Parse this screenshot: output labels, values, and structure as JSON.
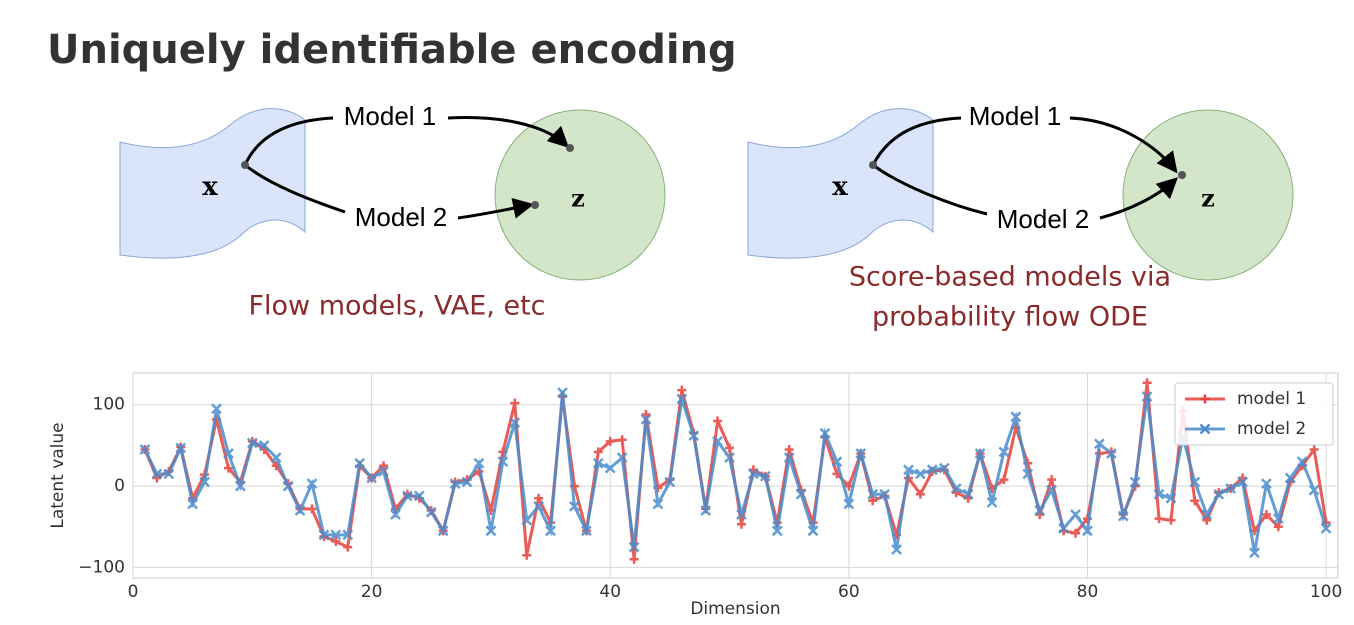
{
  "title": "Uniquely identifiable encoding",
  "diagrams": [
    {
      "x": "x",
      "z": "z",
      "edges": [
        "Model 1",
        "Model 2"
      ],
      "caption": [
        "Flow models, VAE, etc"
      ]
    },
    {
      "x": "x",
      "z": "z",
      "edges": [
        "Model 1",
        "Model 2"
      ],
      "caption": [
        "Score-based models via",
        "probability flow ODE"
      ]
    }
  ],
  "chart_data": {
    "type": "line",
    "xlabel": "Dimension",
    "ylabel": "Latent value",
    "xlim": [
      0,
      101
    ],
    "ylim": [
      -113,
      139
    ],
    "xticks": [
      0,
      20,
      40,
      60,
      80,
      100
    ],
    "yticks": [
      {
        "value": -100,
        "label": "−100"
      },
      0,
      100
    ],
    "grid": true,
    "legend": "upper right",
    "x": [
      1,
      2,
      3,
      4,
      5,
      6,
      7,
      8,
      9,
      10,
      11,
      12,
      13,
      14,
      15,
      16,
      17,
      18,
      19,
      20,
      21,
      22,
      23,
      24,
      25,
      26,
      27,
      28,
      29,
      30,
      31,
      32,
      33,
      34,
      35,
      36,
      37,
      38,
      39,
      40,
      41,
      42,
      43,
      44,
      45,
      46,
      47,
      48,
      49,
      50,
      51,
      52,
      53,
      54,
      55,
      56,
      57,
      58,
      59,
      60,
      61,
      62,
      63,
      64,
      65,
      66,
      67,
      68,
      69,
      70,
      71,
      72,
      73,
      74,
      75,
      76,
      77,
      78,
      79,
      80,
      81,
      82,
      83,
      84,
      85,
      86,
      87,
      88,
      89,
      90,
      91,
      92,
      93,
      94,
      95,
      96,
      97,
      98,
      99,
      100
    ],
    "series": [
      {
        "name": "model 1",
        "color": "#e8403a",
        "marker": "plus",
        "values": [
          45,
          10,
          18,
          48,
          -15,
          14,
          82,
          22,
          5,
          55,
          45,
          25,
          3,
          -28,
          -28,
          -62,
          -68,
          -75,
          25,
          10,
          25,
          -28,
          -10,
          -15,
          -30,
          -55,
          5,
          8,
          18,
          -30,
          42,
          102,
          -85,
          -15,
          -45,
          110,
          0,
          -55,
          42,
          55,
          57,
          -90,
          88,
          -2,
          8,
          118,
          65,
          -28,
          80,
          47,
          -47,
          20,
          12,
          -45,
          45,
          -5,
          -45,
          60,
          15,
          0,
          40,
          -18,
          -12,
          -60,
          10,
          -10,
          18,
          20,
          -8,
          -15,
          40,
          -3,
          8,
          72,
          28,
          -35,
          8,
          -55,
          -58,
          -40,
          40,
          42,
          -35,
          0,
          127,
          -40,
          -42,
          92,
          -18,
          -42,
          -8,
          -3,
          10,
          -55,
          -35,
          -50,
          5,
          25,
          45,
          -45
        ]
      },
      {
        "name": "model 2",
        "color": "#4a8ccc",
        "marker": "x",
        "values": [
          45,
          15,
          15,
          47,
          -22,
          5,
          95,
          40,
          0,
          53,
          50,
          35,
          0,
          -30,
          3,
          -60,
          -60,
          -60,
          28,
          10,
          18,
          -35,
          -12,
          -12,
          -32,
          -55,
          3,
          5,
          28,
          -55,
          30,
          78,
          -42,
          -25,
          -55,
          115,
          -25,
          -55,
          28,
          22,
          35,
          -75,
          82,
          -22,
          5,
          107,
          62,
          -30,
          55,
          35,
          -35,
          15,
          12,
          -55,
          35,
          -10,
          -55,
          65,
          30,
          -22,
          40,
          -10,
          -10,
          -78,
          20,
          15,
          20,
          22,
          -3,
          -10,
          40,
          -20,
          42,
          85,
          15,
          -30,
          -5,
          -52,
          -35,
          -55,
          52,
          40,
          -37,
          5,
          110,
          -10,
          -15,
          60,
          5,
          -35,
          -10,
          -3,
          5,
          -82,
          3,
          -40,
          10,
          30,
          -5,
          -52
        ]
      }
    ]
  }
}
